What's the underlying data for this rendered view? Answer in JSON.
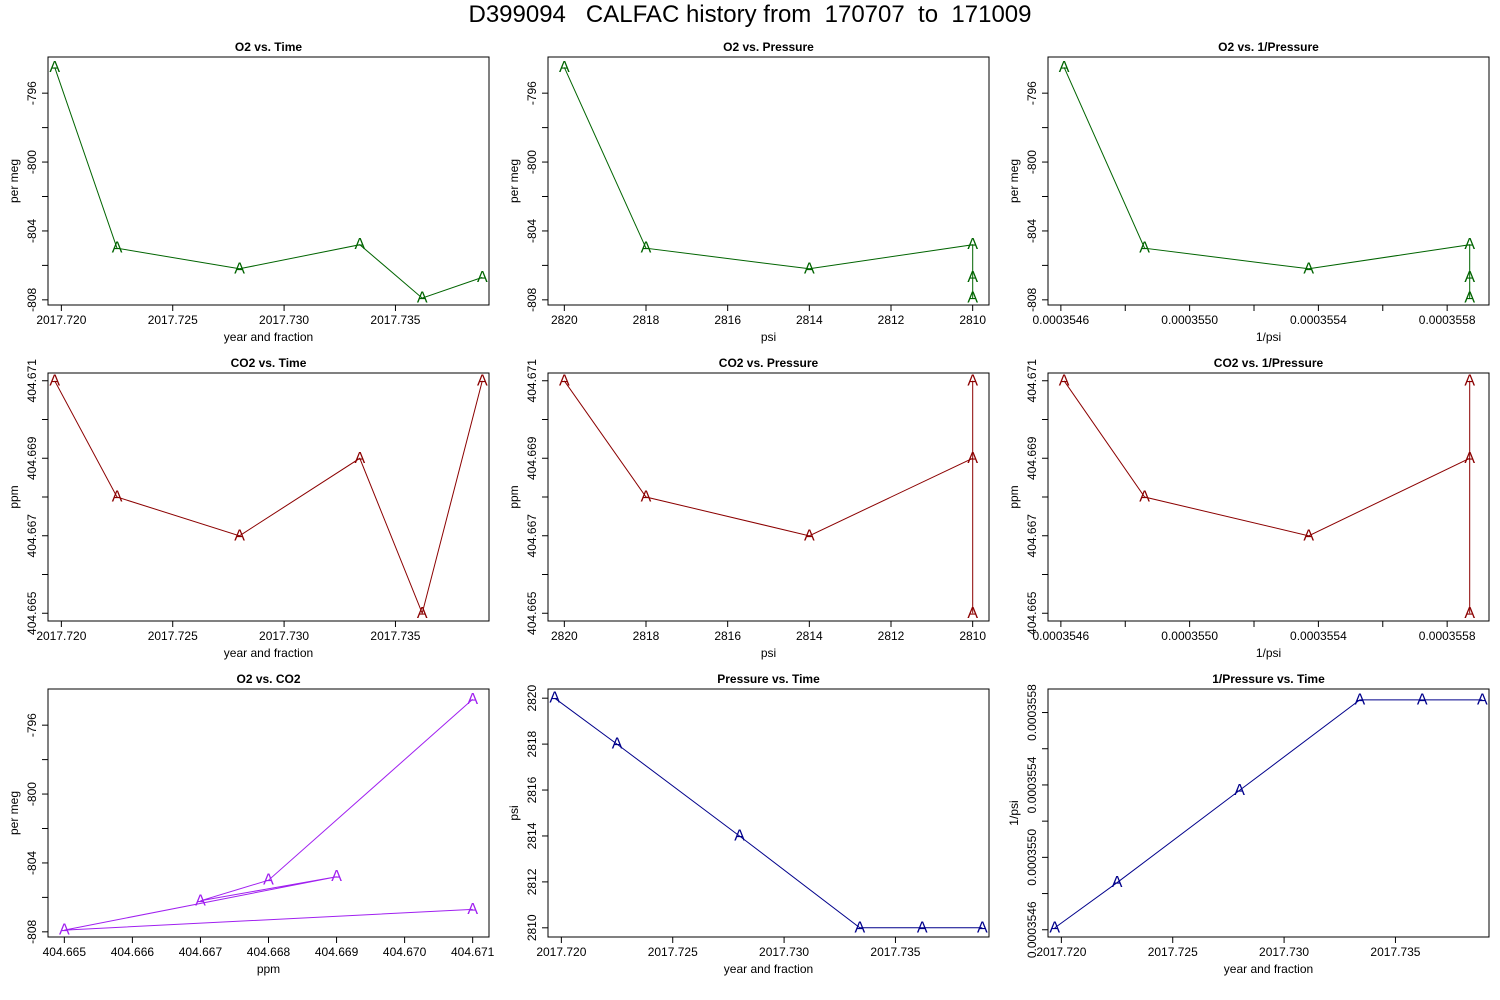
{
  "page": {
    "title": "D399094   CALFAC history from  170707  to  171009"
  },
  "chart_data": [
    {
      "type": "line",
      "title": "O2 vs. Time",
      "xlabel": "year and fraction",
      "ylabel": "per meg",
      "color": "#006400",
      "marker": "A",
      "xlim": [
        2017.7194,
        2017.7392
      ],
      "ylim": [
        -808.3,
        -793.9
      ],
      "xticks": [
        {
          "v": 2017.72,
          "label": "2017.720"
        },
        {
          "v": 2017.725,
          "label": "2017.725"
        },
        {
          "v": 2017.73,
          "label": "2017.730"
        },
        {
          "v": 2017.735,
          "label": "2017.735"
        }
      ],
      "yticks": [
        {
          "v": -796,
          "label": "-796"
        },
        {
          "v": -798,
          "label": ""
        },
        {
          "v": -800,
          "label": "-800"
        },
        {
          "v": -802,
          "label": ""
        },
        {
          "v": -804,
          "label": "-804"
        },
        {
          "v": -806,
          "label": ""
        },
        {
          "v": -808,
          "label": "-808"
        }
      ],
      "x": [
        2017.7197,
        2017.7225,
        2017.728,
        2017.7334,
        2017.7362,
        2017.7389
      ],
      "y": [
        -794.5,
        -805.0,
        -806.2,
        -804.8,
        -807.9,
        -806.7
      ]
    },
    {
      "type": "line",
      "title": "O2 vs. Pressure",
      "xlabel": "psi",
      "ylabel": "per meg",
      "color": "#006400",
      "marker": "A",
      "xlim": [
        2820.4,
        2809.6
      ],
      "ylim": [
        -808.3,
        -793.9
      ],
      "xticks": [
        {
          "v": 2820,
          "label": "2820"
        },
        {
          "v": 2818,
          "label": "2818"
        },
        {
          "v": 2816,
          "label": "2816"
        },
        {
          "v": 2814,
          "label": "2814"
        },
        {
          "v": 2812,
          "label": "2812"
        },
        {
          "v": 2810,
          "label": "2810"
        }
      ],
      "yticks": [
        {
          "v": -796,
          "label": "-796"
        },
        {
          "v": -798,
          "label": ""
        },
        {
          "v": -800,
          "label": "-800"
        },
        {
          "v": -802,
          "label": ""
        },
        {
          "v": -804,
          "label": "-804"
        },
        {
          "v": -806,
          "label": ""
        },
        {
          "v": -808,
          "label": "-808"
        }
      ],
      "x": [
        2820,
        2818,
        2814,
        2810,
        2810,
        2810
      ],
      "y": [
        -794.5,
        -805.0,
        -806.2,
        -804.8,
        -807.9,
        -806.7
      ]
    },
    {
      "type": "line",
      "title": "O2 vs. 1/Pressure",
      "xlabel": "1/psi",
      "ylabel": "per meg",
      "color": "#006400",
      "marker": "A",
      "xlim": [
        0.00035456,
        0.00035593
      ],
      "ylim": [
        -808.3,
        -793.9
      ],
      "xticks": [
        {
          "v": 0.0003546,
          "label": "0.0003546"
        },
        {
          "v": 0.0003548,
          "label": ""
        },
        {
          "v": 0.000355,
          "label": "0.0003550"
        },
        {
          "v": 0.0003552,
          "label": ""
        },
        {
          "v": 0.0003554,
          "label": "0.0003554"
        },
        {
          "v": 0.0003556,
          "label": ""
        },
        {
          "v": 0.0003558,
          "label": "0.0003558"
        }
      ],
      "yticks": [
        {
          "v": -796,
          "label": "-796"
        },
        {
          "v": -798,
          "label": ""
        },
        {
          "v": -800,
          "label": "-800"
        },
        {
          "v": -802,
          "label": ""
        },
        {
          "v": -804,
          "label": "-804"
        },
        {
          "v": -806,
          "label": ""
        },
        {
          "v": -808,
          "label": "-808"
        }
      ],
      "x": [
        0.00035461,
        0.00035486,
        0.00035537,
        0.00035587,
        0.00035587,
        0.00035587
      ],
      "y": [
        -794.5,
        -805.0,
        -806.2,
        -804.8,
        -807.9,
        -806.7
      ]
    },
    {
      "type": "line",
      "title": "CO2 vs. Time",
      "xlabel": "year and fraction",
      "ylabel": "ppm",
      "color": "#8B0000",
      "marker": "A",
      "xlim": [
        2017.7194,
        2017.7392
      ],
      "ylim": [
        404.6648,
        404.6712
      ],
      "xticks": [
        {
          "v": 2017.72,
          "label": "2017.720"
        },
        {
          "v": 2017.725,
          "label": "2017.725"
        },
        {
          "v": 2017.73,
          "label": "2017.730"
        },
        {
          "v": 2017.735,
          "label": "2017.735"
        }
      ],
      "yticks": [
        {
          "v": 404.665,
          "label": "404.665"
        },
        {
          "v": 404.666,
          "label": ""
        },
        {
          "v": 404.667,
          "label": "404.667"
        },
        {
          "v": 404.668,
          "label": ""
        },
        {
          "v": 404.669,
          "label": "404.669"
        },
        {
          "v": 404.67,
          "label": ""
        },
        {
          "v": 404.671,
          "label": "404.671"
        }
      ],
      "x": [
        2017.7197,
        2017.7225,
        2017.728,
        2017.7334,
        2017.7362,
        2017.7389
      ],
      "y": [
        404.671,
        404.668,
        404.667,
        404.669,
        404.665,
        404.671
      ]
    },
    {
      "type": "line",
      "title": "CO2 vs. Pressure",
      "xlabel": "psi",
      "ylabel": "ppm",
      "color": "#8B0000",
      "marker": "A",
      "xlim": [
        2820.4,
        2809.6
      ],
      "ylim": [
        404.6648,
        404.6712
      ],
      "xticks": [
        {
          "v": 2820,
          "label": "2820"
        },
        {
          "v": 2818,
          "label": "2818"
        },
        {
          "v": 2816,
          "label": "2816"
        },
        {
          "v": 2814,
          "label": "2814"
        },
        {
          "v": 2812,
          "label": "2812"
        },
        {
          "v": 2810,
          "label": "2810"
        }
      ],
      "yticks": [
        {
          "v": 404.665,
          "label": "404.665"
        },
        {
          "v": 404.666,
          "label": ""
        },
        {
          "v": 404.667,
          "label": "404.667"
        },
        {
          "v": 404.668,
          "label": ""
        },
        {
          "v": 404.669,
          "label": "404.669"
        },
        {
          "v": 404.67,
          "label": ""
        },
        {
          "v": 404.671,
          "label": "404.671"
        }
      ],
      "x": [
        2820,
        2818,
        2814,
        2810,
        2810,
        2810
      ],
      "y": [
        404.671,
        404.668,
        404.667,
        404.669,
        404.665,
        404.671
      ]
    },
    {
      "type": "line",
      "title": "CO2 vs. 1/Pressure",
      "xlabel": "1/psi",
      "ylabel": "ppm",
      "color": "#8B0000",
      "marker": "A",
      "xlim": [
        0.00035456,
        0.00035593
      ],
      "ylim": [
        404.6648,
        404.6712
      ],
      "xticks": [
        {
          "v": 0.0003546,
          "label": "0.0003546"
        },
        {
          "v": 0.0003548,
          "label": ""
        },
        {
          "v": 0.000355,
          "label": "0.0003550"
        },
        {
          "v": 0.0003552,
          "label": ""
        },
        {
          "v": 0.0003554,
          "label": "0.0003554"
        },
        {
          "v": 0.0003556,
          "label": ""
        },
        {
          "v": 0.0003558,
          "label": "0.0003558"
        }
      ],
      "yticks": [
        {
          "v": 404.665,
          "label": "404.665"
        },
        {
          "v": 404.666,
          "label": ""
        },
        {
          "v": 404.667,
          "label": "404.667"
        },
        {
          "v": 404.668,
          "label": ""
        },
        {
          "v": 404.669,
          "label": "404.669"
        },
        {
          "v": 404.67,
          "label": ""
        },
        {
          "v": 404.671,
          "label": "404.671"
        }
      ],
      "x": [
        0.00035461,
        0.00035486,
        0.00035537,
        0.00035587,
        0.00035587,
        0.00035587
      ],
      "y": [
        404.671,
        404.668,
        404.667,
        404.669,
        404.665,
        404.671
      ]
    },
    {
      "type": "line",
      "title": "O2 vs. CO2",
      "xlabel": "ppm",
      "ylabel": "per meg",
      "color": "#A020F0",
      "marker": "A",
      "xlim": [
        404.66476,
        404.67124
      ],
      "ylim": [
        -808.3,
        -793.9
      ],
      "xticks": [
        {
          "v": 404.665,
          "label": "404.665"
        },
        {
          "v": 404.666,
          "label": "404.666"
        },
        {
          "v": 404.667,
          "label": "404.667"
        },
        {
          "v": 404.668,
          "label": "404.668"
        },
        {
          "v": 404.669,
          "label": "404.669"
        },
        {
          "v": 404.67,
          "label": "404.670"
        },
        {
          "v": 404.671,
          "label": "404.671"
        }
      ],
      "yticks": [
        {
          "v": -796,
          "label": "-796"
        },
        {
          "v": -798,
          "label": ""
        },
        {
          "v": -800,
          "label": "-800"
        },
        {
          "v": -802,
          "label": ""
        },
        {
          "v": -804,
          "label": "-804"
        },
        {
          "v": -806,
          "label": ""
        },
        {
          "v": -808,
          "label": "-808"
        }
      ],
      "x": [
        404.671,
        404.668,
        404.667,
        404.669,
        404.665,
        404.671
      ],
      "y": [
        -794.5,
        -805.0,
        -806.2,
        -804.8,
        -807.9,
        -806.7
      ]
    },
    {
      "type": "line",
      "title": "Pressure vs. Time",
      "xlabel": "year and fraction",
      "ylabel": "psi",
      "color": "#00008B",
      "marker": "A",
      "xlim": [
        2017.7194,
        2017.7392
      ],
      "ylim": [
        2809.6,
        2820.4
      ],
      "xticks": [
        {
          "v": 2017.72,
          "label": "2017.720"
        },
        {
          "v": 2017.725,
          "label": "2017.725"
        },
        {
          "v": 2017.73,
          "label": "2017.730"
        },
        {
          "v": 2017.735,
          "label": "2017.735"
        }
      ],
      "yticks": [
        {
          "v": 2810,
          "label": "2810"
        },
        {
          "v": 2812,
          "label": "2812"
        },
        {
          "v": 2814,
          "label": "2814"
        },
        {
          "v": 2816,
          "label": "2816"
        },
        {
          "v": 2818,
          "label": "2818"
        },
        {
          "v": 2820,
          "label": "2820"
        }
      ],
      "x": [
        2017.7197,
        2017.7225,
        2017.728,
        2017.7334,
        2017.7362,
        2017.7389
      ],
      "y": [
        2820,
        2818,
        2814,
        2810,
        2810,
        2810
      ]
    },
    {
      "type": "line",
      "title": "1/Pressure vs. Time",
      "xlabel": "year and fraction",
      "ylabel": "1/psi",
      "color": "#00008B",
      "marker": "A",
      "xlim": [
        2017.7194,
        2017.7392
      ],
      "ylim": [
        0.00035456,
        0.00035593
      ],
      "xticks": [
        {
          "v": 2017.72,
          "label": "2017.720"
        },
        {
          "v": 2017.725,
          "label": "2017.725"
        },
        {
          "v": 2017.73,
          "label": "2017.730"
        },
        {
          "v": 2017.735,
          "label": "2017.735"
        }
      ],
      "yticks": [
        {
          "v": 0.0003546,
          "label": "0.0003546"
        },
        {
          "v": 0.0003548,
          "label": ""
        },
        {
          "v": 0.000355,
          "label": "0.0003550"
        },
        {
          "v": 0.0003552,
          "label": ""
        },
        {
          "v": 0.0003554,
          "label": "0.0003554"
        },
        {
          "v": 0.0003556,
          "label": ""
        },
        {
          "v": 0.0003558,
          "label": "0.0003558"
        }
      ],
      "x": [
        2017.7197,
        2017.7225,
        2017.728,
        2017.7334,
        2017.7362,
        2017.7389
      ],
      "y": [
        0.00035461,
        0.00035486,
        0.00035537,
        0.00035587,
        0.00035587,
        0.00035587
      ]
    }
  ]
}
